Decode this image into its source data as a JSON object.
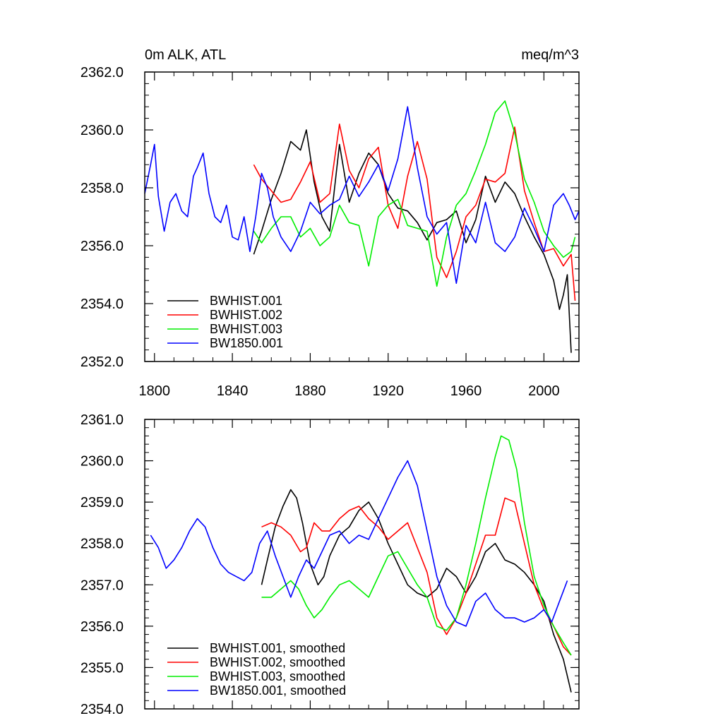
{
  "chart_data": [
    {
      "type": "line",
      "title_left": "0m ALK, ATL",
      "title_right": "meq/m^3",
      "xlim": [
        1795,
        2018
      ],
      "ylim": [
        2352,
        2362
      ],
      "x_ticks": [
        1800,
        1840,
        1880,
        1920,
        1960,
        2000
      ],
      "x_tick_labels": [
        "1800",
        "1840",
        "1880",
        "1920",
        "1960",
        "2000"
      ],
      "y_ticks": [
        2352,
        2354,
        2356,
        2358,
        2360,
        2362
      ],
      "y_tick_labels": [
        "2352.0",
        "2354.0",
        "2356.0",
        "2358.0",
        "2360.0",
        "2362.0"
      ],
      "grid": false,
      "legend_position": "bottom-left",
      "series": [
        {
          "name": "BWHIST.001",
          "color": "#000000",
          "x": [
            1851,
            1855,
            1860,
            1865,
            1870,
            1875,
            1878,
            1882,
            1886,
            1890,
            1895,
            1900,
            1905,
            1910,
            1915,
            1920,
            1925,
            1930,
            1935,
            1940,
            1945,
            1950,
            1955,
            1960,
            1965,
            1970,
            1975,
            1980,
            1985,
            1990,
            1995,
            2000,
            2005,
            2008,
            2010,
            2012,
            2014
          ],
          "y": [
            2355.7,
            2356.5,
            2357.6,
            2358.5,
            2359.6,
            2359.3,
            2360.0,
            2358.2,
            2357.0,
            2356.5,
            2359.5,
            2357.5,
            2358.5,
            2359.2,
            2358.8,
            2357.8,
            2357.3,
            2357.2,
            2356.8,
            2356.2,
            2356.8,
            2356.9,
            2357.2,
            2356.1,
            2356.9,
            2358.4,
            2357.5,
            2358.2,
            2357.8,
            2357.0,
            2356.3,
            2355.7,
            2354.8,
            2353.8,
            2354.3,
            2355.0,
            2352.3
          ]
        },
        {
          "name": "BWHIST.002",
          "color": "#ff0000",
          "x": [
            1851,
            1855,
            1860,
            1865,
            1870,
            1875,
            1880,
            1885,
            1890,
            1895,
            1900,
            1905,
            1910,
            1915,
            1920,
            1925,
            1930,
            1935,
            1940,
            1945,
            1950,
            1955,
            1960,
            1965,
            1970,
            1975,
            1980,
            1985,
            1990,
            1995,
            2000,
            2005,
            2010,
            2014,
            2016
          ],
          "y": [
            2358.8,
            2358.3,
            2357.9,
            2357.5,
            2357.6,
            2358.2,
            2358.9,
            2357.5,
            2357.8,
            2360.2,
            2358.6,
            2358.0,
            2359.0,
            2359.4,
            2357.4,
            2356.6,
            2358.4,
            2359.6,
            2358.3,
            2355.6,
            2354.9,
            2355.8,
            2357.0,
            2357.4,
            2358.3,
            2358.2,
            2358.5,
            2360.1,
            2357.9,
            2356.8,
            2355.8,
            2355.9,
            2355.3,
            2355.7,
            2354.1
          ]
        },
        {
          "name": "BWHIST.003",
          "color": "#00ee00",
          "x": [
            1851,
            1855,
            1860,
            1865,
            1870,
            1875,
            1880,
            1885,
            1890,
            1895,
            1900,
            1905,
            1910,
            1915,
            1920,
            1925,
            1930,
            1935,
            1940,
            1945,
            1950,
            1955,
            1960,
            1965,
            1970,
            1975,
            1980,
            1985,
            1990,
            1995,
            2000,
            2005,
            2010,
            2014,
            2016
          ],
          "y": [
            2356.5,
            2356.1,
            2356.6,
            2357.0,
            2357.0,
            2356.3,
            2356.6,
            2356.0,
            2356.3,
            2357.4,
            2356.8,
            2356.7,
            2355.3,
            2357.0,
            2357.4,
            2357.6,
            2356.7,
            2356.6,
            2356.5,
            2354.6,
            2356.3,
            2357.4,
            2357.8,
            2358.6,
            2359.5,
            2360.6,
            2361.0,
            2359.9,
            2358.3,
            2357.5,
            2356.5,
            2356.0,
            2355.6,
            2355.8,
            2356.3
          ]
        },
        {
          "name": "BW1850.001",
          "color": "#0000ff",
          "x": [
            1795,
            1798,
            1800,
            1802,
            1805,
            1808,
            1811,
            1814,
            1817,
            1820,
            1822,
            1825,
            1828,
            1831,
            1834,
            1837,
            1840,
            1843,
            1846,
            1849,
            1852,
            1855,
            1858,
            1861,
            1865,
            1870,
            1875,
            1880,
            1885,
            1890,
            1895,
            1900,
            1905,
            1910,
            1915,
            1920,
            1925,
            1930,
            1935,
            1940,
            1945,
            1950,
            1955,
            1960,
            1965,
            1970,
            1975,
            1980,
            1985,
            1990,
            1995,
            2000,
            2005,
            2010,
            2013,
            2016,
            2018
          ],
          "y": [
            2357.8,
            2358.8,
            2359.5,
            2357.7,
            2356.5,
            2357.5,
            2357.8,
            2357.2,
            2357.0,
            2358.4,
            2358.7,
            2359.2,
            2357.8,
            2357.0,
            2356.8,
            2357.4,
            2356.3,
            2356.2,
            2357.0,
            2355.8,
            2357.0,
            2358.5,
            2358.0,
            2357.0,
            2356.3,
            2355.8,
            2356.5,
            2357.5,
            2357.1,
            2357.4,
            2357.6,
            2358.4,
            2357.7,
            2358.2,
            2358.8,
            2357.9,
            2359.0,
            2360.8,
            2358.7,
            2357.0,
            2356.4,
            2356.8,
            2354.7,
            2356.7,
            2356.1,
            2357.5,
            2356.1,
            2355.8,
            2356.3,
            2357.3,
            2356.6,
            2355.8,
            2357.4,
            2357.8,
            2357.4,
            2356.9,
            2357.2
          ]
        }
      ]
    },
    {
      "type": "line",
      "xlim": [
        1795,
        2018
      ],
      "ylim": [
        2354,
        2361
      ],
      "x_ticks": [
        1800,
        1840,
        1880,
        1920,
        1960,
        2000
      ],
      "y_ticks": [
        2354,
        2355,
        2356,
        2357,
        2358,
        2359,
        2360,
        2361
      ],
      "y_tick_labels": [
        "2354.0",
        "2355.0",
        "2356.0",
        "2357.0",
        "2358.0",
        "2359.0",
        "2360.0",
        "2361.0"
      ],
      "grid": false,
      "legend_position": "bottom-left",
      "series": [
        {
          "name": "BWHIST.001, smoothed",
          "color": "#000000",
          "x": [
            1855,
            1858,
            1862,
            1866,
            1870,
            1873,
            1876,
            1880,
            1884,
            1887,
            1890,
            1895,
            1900,
            1905,
            1910,
            1915,
            1920,
            1925,
            1930,
            1935,
            1940,
            1945,
            1950,
            1955,
            1960,
            1965,
            1970,
            1975,
            1980,
            1985,
            1990,
            1995,
            2000,
            2005,
            2010,
            2014
          ],
          "y": [
            2357.0,
            2357.6,
            2358.4,
            2358.9,
            2359.3,
            2359.1,
            2358.5,
            2357.5,
            2357.0,
            2357.2,
            2357.7,
            2358.2,
            2358.4,
            2358.8,
            2359.0,
            2358.6,
            2358.0,
            2357.5,
            2357.0,
            2356.8,
            2356.7,
            2356.9,
            2357.4,
            2357.2,
            2356.8,
            2357.2,
            2357.8,
            2358.0,
            2357.6,
            2357.5,
            2357.3,
            2357.0,
            2356.6,
            2355.8,
            2355.2,
            2354.4
          ]
        },
        {
          "name": "BWHIST.002, smoothed",
          "color": "#ff0000",
          "x": [
            1855,
            1860,
            1865,
            1870,
            1875,
            1878,
            1882,
            1886,
            1890,
            1895,
            1900,
            1905,
            1910,
            1915,
            1920,
            1925,
            1930,
            1935,
            1940,
            1945,
            1950,
            1955,
            1960,
            1965,
            1970,
            1975,
            1980,
            1985,
            1990,
            1995,
            2000,
            2005,
            2010,
            2014
          ],
          "y": [
            2358.4,
            2358.5,
            2358.4,
            2358.2,
            2357.8,
            2357.9,
            2358.5,
            2358.3,
            2358.3,
            2358.6,
            2358.8,
            2358.9,
            2358.6,
            2358.4,
            2358.1,
            2358.3,
            2358.5,
            2357.9,
            2357.3,
            2356.2,
            2355.8,
            2356.2,
            2356.8,
            2357.5,
            2358.2,
            2358.2,
            2359.1,
            2359.0,
            2358.0,
            2357.0,
            2356.4,
            2356.0,
            2355.5,
            2355.3
          ]
        },
        {
          "name": "BWHIST.003, smoothed",
          "color": "#00ee00",
          "x": [
            1855,
            1860,
            1865,
            1870,
            1874,
            1878,
            1882,
            1886,
            1890,
            1895,
            1900,
            1905,
            1910,
            1915,
            1920,
            1925,
            1930,
            1935,
            1940,
            1945,
            1950,
            1955,
            1960,
            1965,
            1970,
            1975,
            1978,
            1982,
            1986,
            1990,
            1995,
            2000,
            2005,
            2010,
            2014
          ],
          "y": [
            2356.7,
            2356.7,
            2356.9,
            2357.1,
            2356.9,
            2356.5,
            2356.2,
            2356.4,
            2356.7,
            2357.0,
            2357.1,
            2356.9,
            2356.7,
            2357.2,
            2357.7,
            2357.8,
            2357.4,
            2357.0,
            2356.7,
            2356.0,
            2355.9,
            2356.2,
            2357.0,
            2358.0,
            2359.1,
            2360.1,
            2360.6,
            2360.5,
            2359.8,
            2358.5,
            2357.2,
            2356.5,
            2356.0,
            2355.6,
            2355.3
          ]
        },
        {
          "name": "BW1850.001, smoothed",
          "color": "#0000ff",
          "x": [
            1798,
            1802,
            1806,
            1810,
            1814,
            1818,
            1822,
            1826,
            1830,
            1834,
            1838,
            1842,
            1846,
            1850,
            1854,
            1858,
            1862,
            1866,
            1870,
            1874,
            1878,
            1882,
            1886,
            1890,
            1895,
            1900,
            1905,
            1910,
            1915,
            1920,
            1925,
            1930,
            1935,
            1940,
            1945,
            1950,
            1955,
            1960,
            1965,
            1970,
            1975,
            1980,
            1985,
            1990,
            1995,
            2000,
            2004,
            2008,
            2012
          ],
          "y": [
            2358.2,
            2357.9,
            2357.4,
            2357.6,
            2357.9,
            2358.3,
            2358.6,
            2358.4,
            2357.9,
            2357.5,
            2357.3,
            2357.2,
            2357.1,
            2357.3,
            2358.0,
            2358.3,
            2357.7,
            2357.2,
            2356.7,
            2357.2,
            2357.6,
            2357.4,
            2357.8,
            2358.2,
            2358.3,
            2358.0,
            2358.2,
            2358.1,
            2358.6,
            2359.1,
            2359.6,
            2360.0,
            2359.4,
            2358.3,
            2357.2,
            2356.5,
            2356.1,
            2356.0,
            2356.6,
            2356.8,
            2356.4,
            2356.2,
            2356.2,
            2356.1,
            2356.2,
            2356.4,
            2356.1,
            2356.6,
            2357.1
          ]
        }
      ]
    }
  ]
}
